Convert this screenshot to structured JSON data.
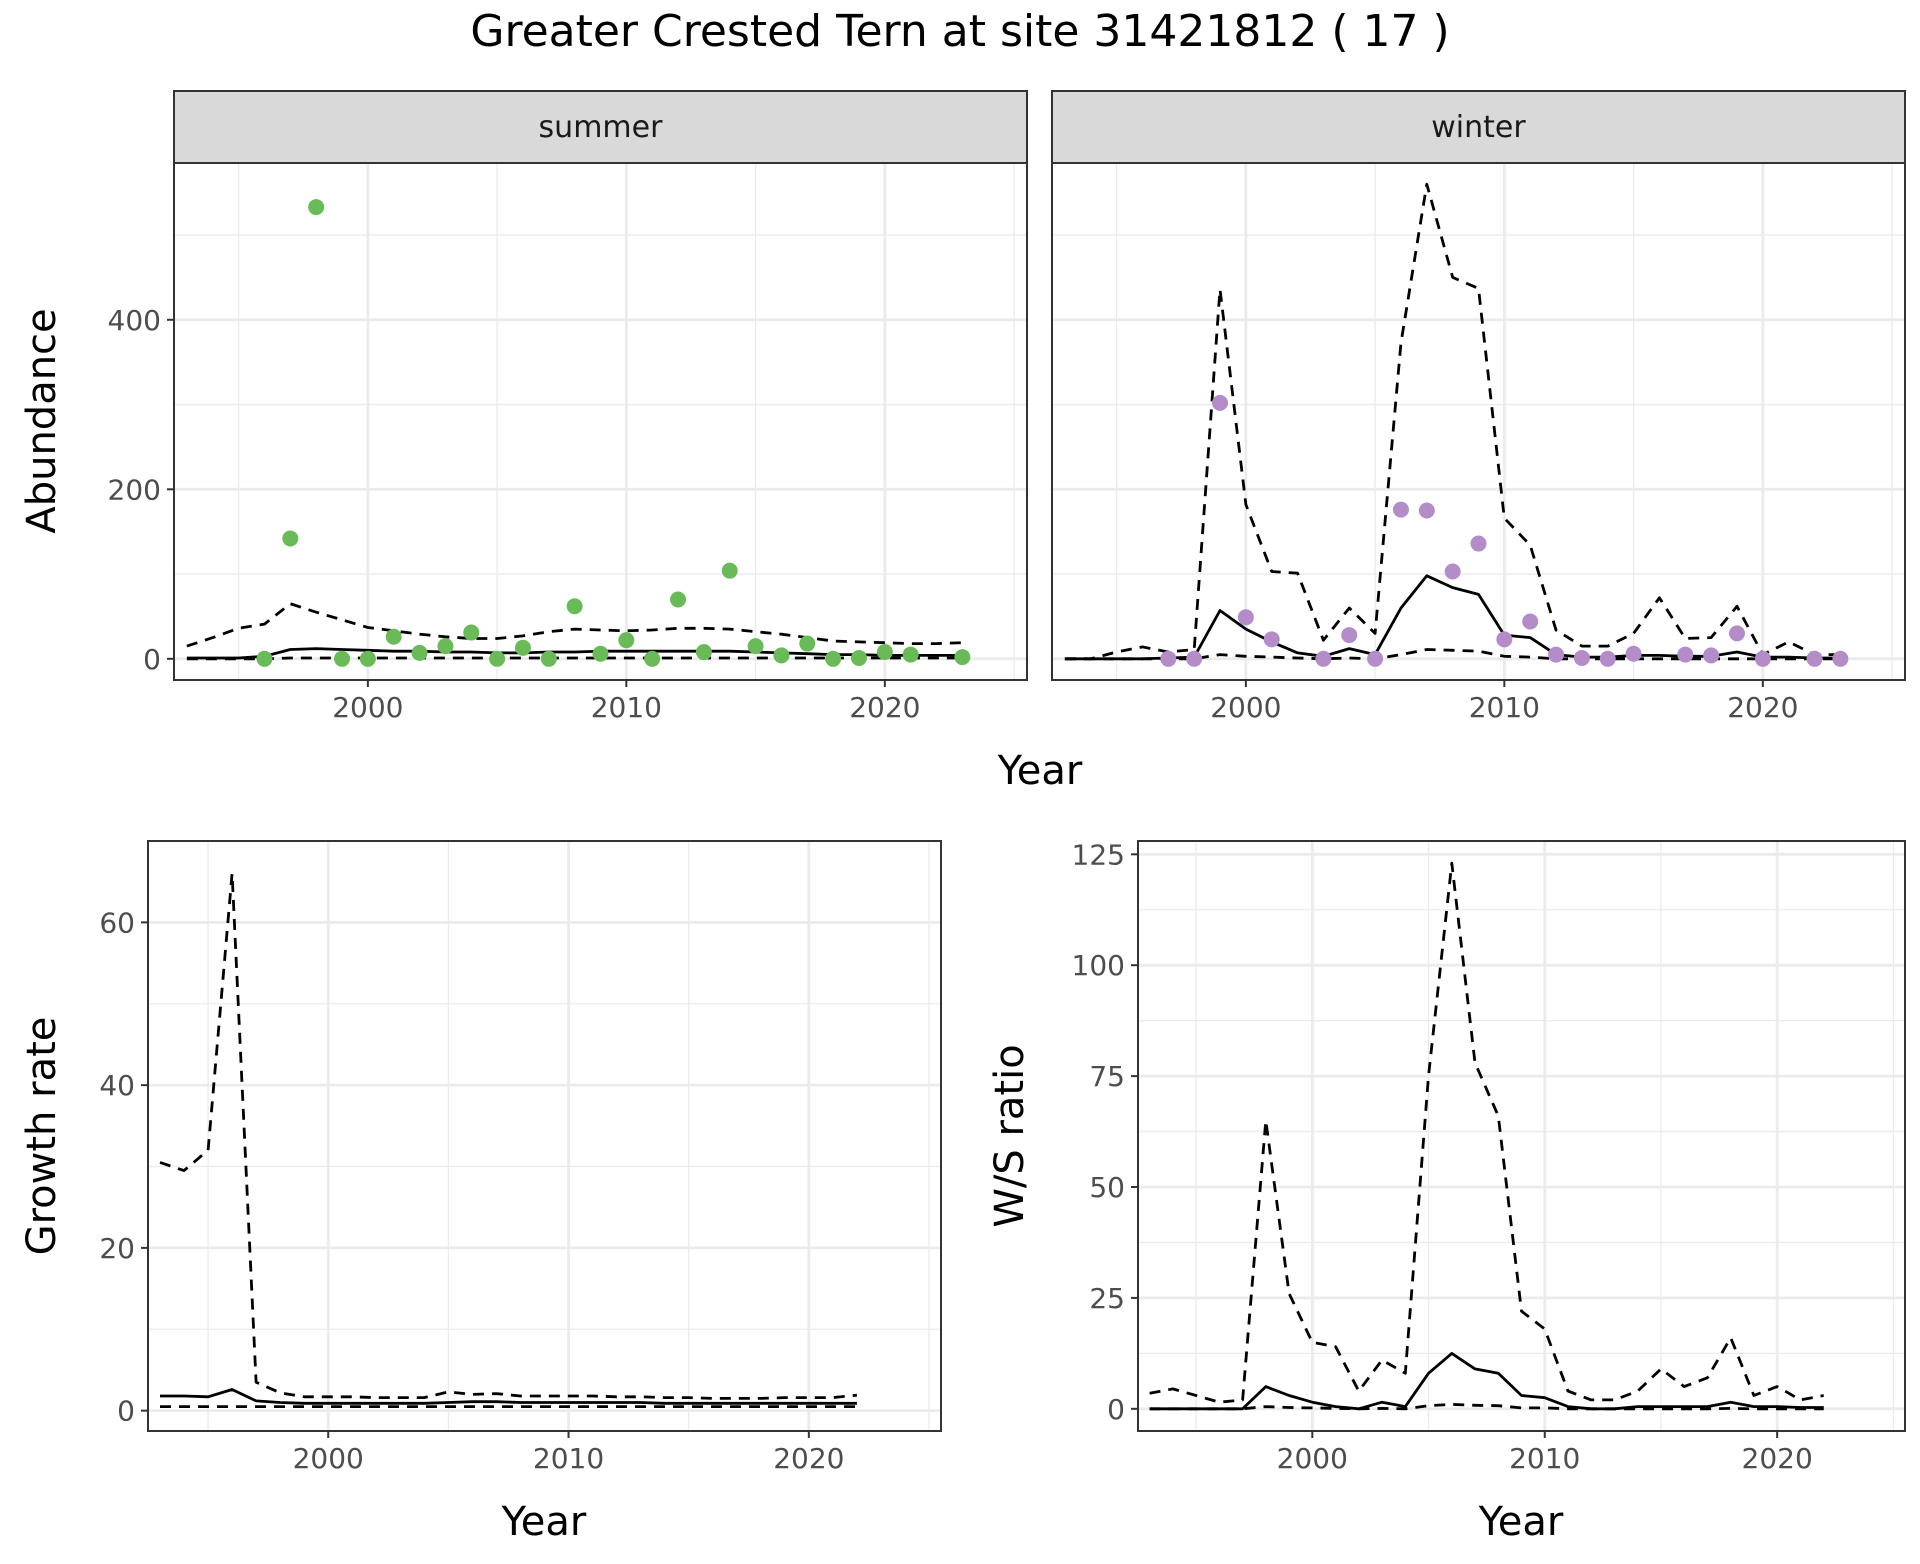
{
  "title": "Greater Crested Tern at site 31421812 ( 17 )",
  "colors": {
    "summer_points": "#6BBA5A",
    "winter_points": "#B48CC8",
    "lines": "#000000",
    "strip_fill": "#D9D9D9",
    "grid": "#EBEBEB"
  },
  "chart_data": [
    {
      "id": "abundance",
      "type": "line+scatter",
      "facets": [
        "summer",
        "winter"
      ],
      "xlabel": "Year",
      "ylabel": "Abundance",
      "xlim": [
        1992.5,
        2025.5
      ],
      "ylim": [
        -25,
        585
      ],
      "xticks": [
        2000,
        2010,
        2020
      ],
      "yticks": [
        0,
        200,
        400
      ],
      "grid": true,
      "panels": [
        {
          "facet": "summer",
          "points": {
            "x": [
              1996,
              1997,
              1998,
              1999,
              2000,
              2001,
              2002,
              2003,
              2004,
              2005,
              2006,
              2007,
              2008,
              2009,
              2010,
              2011,
              2012,
              2013,
              2014,
              2015,
              2016,
              2017,
              2018,
              2019,
              2020,
              2021,
              2023
            ],
            "y": [
              0,
              142,
              533,
              0,
              0,
              26,
              7,
              15,
              31,
              0,
              13,
              0,
              62,
              6,
              22,
              0,
              70,
              8,
              104,
              15,
              4,
              18,
              0,
              1,
              8,
              5,
              2
            ]
          },
          "lines": [
            {
              "style": "solid",
              "x": [
                1993,
                1994,
                1995,
                1996,
                1997,
                1998,
                1999,
                2000,
                2001,
                2002,
                2003,
                2004,
                2005,
                2006,
                2007,
                2008,
                2009,
                2010,
                2011,
                2012,
                2013,
                2014,
                2015,
                2016,
                2017,
                2018,
                2019,
                2020,
                2021,
                2022,
                2023
              ],
              "y": [
                1,
                1,
                1,
                3,
                11,
                12,
                11,
                10,
                9,
                9,
                8,
                8,
                7,
                7,
                8,
                8,
                9,
                9,
                9,
                9,
                9,
                9,
                8,
                7,
                6,
                5,
                5,
                4,
                4,
                4,
                4
              ]
            },
            {
              "style": "dashed",
              "x": [
                1993,
                1994,
                1995,
                1996,
                1997,
                1998,
                1999,
                2000,
                2001,
                2002,
                2003,
                2004,
                2005,
                2006,
                2007,
                2008,
                2009,
                2010,
                2011,
                2012,
                2013,
                2014,
                2015,
                2016,
                2017,
                2018,
                2019,
                2020,
                2021,
                2022,
                2023
              ],
              "y": [
                15,
                25,
                36,
                41,
                65,
                55,
                46,
                37,
                33,
                29,
                26,
                24,
                24,
                27,
                32,
                35,
                34,
                33,
                34,
                36,
                36,
                35,
                32,
                29,
                25,
                21,
                20,
                19,
                18,
                18,
                19
              ]
            },
            {
              "style": "dashed",
              "x": [
                1993,
                1994,
                1995,
                1996,
                1997,
                1998,
                1999,
                2000,
                2001,
                2002,
                2003,
                2004,
                2005,
                2006,
                2007,
                2008,
                2009,
                2010,
                2011,
                2012,
                2013,
                2014,
                2015,
                2016,
                2017,
                2018,
                2019,
                2020,
                2021,
                2022,
                2023
              ],
              "y": [
                0,
                0,
                0,
                0,
                1,
                1,
                1,
                1,
                1,
                1,
                1,
                1,
                1,
                1,
                1,
                1,
                1,
                1,
                1,
                1,
                1,
                1,
                1,
                1,
                1,
                1,
                1,
                1,
                1,
                1,
                1
              ]
            }
          ]
        },
        {
          "facet": "winter",
          "points": {
            "x": [
              1997,
              1998,
              1999,
              2000,
              2001,
              2003,
              2004,
              2005,
              2006,
              2007,
              2008,
              2009,
              2010,
              2011,
              2012,
              2013,
              2014,
              2015,
              2017,
              2018,
              2019,
              2020,
              2022,
              2023
            ],
            "y": [
              0,
              0,
              302,
              49,
              23,
              0,
              28,
              0,
              176,
              175,
              103,
              136,
              23,
              44,
              5,
              1,
              0,
              6,
              5,
              4,
              30,
              0,
              0,
              0
            ]
          },
          "lines": [
            {
              "style": "solid",
              "x": [
                1993,
                1994,
                1995,
                1996,
                1997,
                1998,
                1999,
                2000,
                2001,
                2002,
                2003,
                2004,
                2005,
                2006,
                2007,
                2008,
                2009,
                2010,
                2011,
                2012,
                2013,
                2014,
                2015,
                2016,
                2017,
                2018,
                2019,
                2020,
                2021,
                2022,
                2023
              ],
              "y": [
                0,
                0,
                0,
                0,
                1,
                2,
                57,
                35,
                20,
                7,
                3,
                12,
                5,
                60,
                98,
                84,
                76,
                28,
                25,
                5,
                2,
                2,
                4,
                4,
                3,
                3,
                8,
                2,
                2,
                1,
                1
              ]
            },
            {
              "style": "dashed",
              "x": [
                1993,
                1994,
                1995,
                1996,
                1997,
                1998,
                1999,
                2000,
                2001,
                2002,
                2003,
                2004,
                2005,
                2006,
                2007,
                2008,
                2009,
                2010,
                2011,
                2012,
                2013,
                2014,
                2015,
                2016,
                2017,
                2018,
                2019,
                2020,
                2021,
                2022,
                2023
              ],
              "y": [
                0,
                0,
                8,
                14,
                8,
                11,
                436,
                182,
                103,
                101,
                22,
                60,
                30,
                373,
                560,
                450,
                437,
                166,
                134,
                34,
                15,
                15,
                30,
                72,
                24,
                25,
                62,
                5,
                20,
                5,
                5
              ]
            },
            {
              "style": "dashed",
              "x": [
                1993,
                1994,
                1995,
                1996,
                1997,
                1998,
                1999,
                2000,
                2001,
                2002,
                2003,
                2004,
                2005,
                2006,
                2007,
                2008,
                2009,
                2010,
                2011,
                2012,
                2013,
                2014,
                2015,
                2016,
                2017,
                2018,
                2019,
                2020,
                2021,
                2022,
                2023
              ],
              "y": [
                0,
                0,
                0,
                0,
                0,
                0,
                5,
                3,
                2,
                1,
                0,
                1,
                0,
                5,
                11,
                10,
                9,
                3,
                2,
                0,
                0,
                0,
                0,
                0,
                0,
                0,
                0,
                0,
                0,
                0,
                0
              ]
            }
          ]
        }
      ]
    },
    {
      "id": "growth",
      "type": "line",
      "xlabel": "Year",
      "ylabel": "Growth rate",
      "xlim": [
        1992.5,
        2025.5
      ],
      "ylim": [
        -2.5,
        70
      ],
      "xticks": [
        2000,
        2010,
        2020
      ],
      "yticks": [
        0,
        20,
        40,
        60
      ],
      "grid": true,
      "lines": [
        {
          "style": "solid",
          "x": [
            1993,
            1994,
            1995,
            1996,
            1997,
            1998,
            1999,
            2000,
            2001,
            2002,
            2003,
            2004,
            2005,
            2006,
            2007,
            2008,
            2009,
            2010,
            2011,
            2012,
            2013,
            2014,
            2015,
            2016,
            2017,
            2018,
            2019,
            2020,
            2021,
            2022
          ],
          "y": [
            1.8,
            1.8,
            1.7,
            2.6,
            1.2,
            1.0,
            0.9,
            0.9,
            0.9,
            0.9,
            0.9,
            0.9,
            1.0,
            1.1,
            1.1,
            1.0,
            1.0,
            1.0,
            1.0,
            1.0,
            1.0,
            0.9,
            0.9,
            0.9,
            0.9,
            0.9,
            0.9,
            0.9,
            0.9,
            0.9
          ]
        },
        {
          "style": "dashed",
          "x": [
            1993,
            1994,
            1995,
            1996,
            1997,
            1998,
            1999,
            2000,
            2001,
            2002,
            2003,
            2004,
            2005,
            2006,
            2007,
            2008,
            2009,
            2010,
            2011,
            2012,
            2013,
            2014,
            2015,
            2016,
            2017,
            2018,
            2019,
            2020,
            2021,
            2022
          ],
          "y": [
            30.5,
            29.5,
            32,
            66,
            3.5,
            2.2,
            1.7,
            1.7,
            1.7,
            1.6,
            1.6,
            1.6,
            2.3,
            2.0,
            2.1,
            1.8,
            1.8,
            1.8,
            1.8,
            1.7,
            1.7,
            1.6,
            1.6,
            1.5,
            1.5,
            1.5,
            1.6,
            1.6,
            1.6,
            1.9
          ]
        },
        {
          "style": "dashed",
          "x": [
            1993,
            1994,
            1995,
            1996,
            1997,
            1998,
            1999,
            2000,
            2001,
            2002,
            2003,
            2004,
            2005,
            2006,
            2007,
            2008,
            2009,
            2010,
            2011,
            2012,
            2013,
            2014,
            2015,
            2016,
            2017,
            2018,
            2019,
            2020,
            2021,
            2022
          ],
          "y": [
            0.5,
            0.5,
            0.5,
            0.5,
            0.5,
            0.5,
            0.5,
            0.5,
            0.5,
            0.5,
            0.5,
            0.5,
            0.5,
            0.5,
            0.5,
            0.5,
            0.5,
            0.5,
            0.5,
            0.5,
            0.5,
            0.5,
            0.5,
            0.5,
            0.5,
            0.5,
            0.5,
            0.5,
            0.5,
            0.5
          ]
        }
      ]
    },
    {
      "id": "ws_ratio",
      "type": "line",
      "xlabel": "Year",
      "ylabel": "W/S ratio",
      "xlim": [
        1992.5,
        2025.5
      ],
      "ylim": [
        -5,
        128
      ],
      "xticks": [
        2000,
        2010,
        2020
      ],
      "yticks": [
        0,
        25,
        50,
        75,
        100,
        125
      ],
      "grid": true,
      "lines": [
        {
          "style": "solid",
          "x": [
            1993,
            1994,
            1995,
            1996,
            1997,
            1998,
            1999,
            2000,
            2001,
            2002,
            2003,
            2004,
            2005,
            2006,
            2007,
            2008,
            2009,
            2010,
            2011,
            2012,
            2013,
            2014,
            2015,
            2016,
            2017,
            2018,
            2019,
            2020,
            2021,
            2022
          ],
          "y": [
            0,
            0,
            0,
            0,
            0,
            5,
            3,
            1.5,
            0.5,
            0,
            1.5,
            0.5,
            8,
            12.5,
            9,
            8,
            3,
            2.5,
            0.5,
            0,
            0,
            0.5,
            0.5,
            0.5,
            0.5,
            1.5,
            0.5,
            0.5,
            0.3,
            0.3
          ]
        },
        {
          "style": "dashed",
          "x": [
            1993,
            1994,
            1995,
            1996,
            1997,
            1998,
            1999,
            2000,
            2001,
            2002,
            2003,
            2004,
            2005,
            2006,
            2007,
            2008,
            2009,
            2010,
            2011,
            2012,
            2013,
            2014,
            2015,
            2016,
            2017,
            2018,
            2019,
            2020,
            2021,
            2022
          ],
          "y": [
            3.5,
            4.5,
            3,
            1.5,
            2,
            65,
            26,
            15,
            14,
            4,
            11,
            8,
            75,
            123,
            78,
            66,
            22,
            18,
            4,
            2,
            2,
            4,
            9,
            5,
            7,
            16,
            3,
            5,
            2,
            3
          ]
        },
        {
          "style": "dashed",
          "x": [
            1993,
            1994,
            1995,
            1996,
            1997,
            1998,
            1999,
            2000,
            2001,
            2002,
            2003,
            2004,
            2005,
            2006,
            2007,
            2008,
            2009,
            2010,
            2011,
            2012,
            2013,
            2014,
            2015,
            2016,
            2017,
            2018,
            2019,
            2020,
            2021,
            2022
          ],
          "y": [
            0,
            0,
            0,
            0,
            0,
            0.5,
            0.3,
            0.2,
            0.1,
            0,
            0.1,
            0,
            0.7,
            1,
            0.8,
            0.7,
            0.2,
            0.2,
            0,
            0,
            0,
            0,
            0,
            0,
            0,
            0.1,
            0,
            0,
            0,
            0
          ]
        }
      ]
    }
  ]
}
